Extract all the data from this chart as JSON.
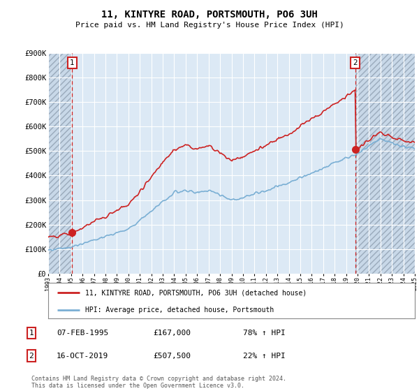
{
  "title": "11, KINTYRE ROAD, PORTSMOUTH, PO6 3UH",
  "subtitle": "Price paid vs. HM Land Registry's House Price Index (HPI)",
  "ylabel_ticks": [
    "£0",
    "£100K",
    "£200K",
    "£300K",
    "£400K",
    "£500K",
    "£600K",
    "£700K",
    "£800K",
    "£900K"
  ],
  "ytick_values": [
    0,
    100000,
    200000,
    300000,
    400000,
    500000,
    600000,
    700000,
    800000,
    900000
  ],
  "ylim": [
    0,
    900000
  ],
  "xlim": [
    1993,
    2025
  ],
  "hpi_color": "#7aafd4",
  "price_color": "#cc2222",
  "purchase1": {
    "date_num": 1995.1,
    "price": 167000,
    "label": "1"
  },
  "purchase2": {
    "date_num": 2019.79,
    "price": 507500,
    "label": "2"
  },
  "legend_entries": [
    "11, KINTYRE ROAD, PORTSMOUTH, PO6 3UH (detached house)",
    "HPI: Average price, detached house, Portsmouth"
  ],
  "table_rows": [
    {
      "num": "1",
      "date": "07-FEB-1995",
      "price": "£167,000",
      "change": "78% ↑ HPI"
    },
    {
      "num": "2",
      "date": "16-OCT-2019",
      "price": "£507,500",
      "change": "22% ↑ HPI"
    }
  ],
  "footer": "Contains HM Land Registry data © Crown copyright and database right 2024.\nThis data is licensed under the Open Government Licence v3.0.",
  "background_color": "#ffffff",
  "plot_bg_color": "#dce9f5",
  "hatch_region_end": 1995.1,
  "grid_color": "#ffffff",
  "dashed_line_color": "#cc2222"
}
